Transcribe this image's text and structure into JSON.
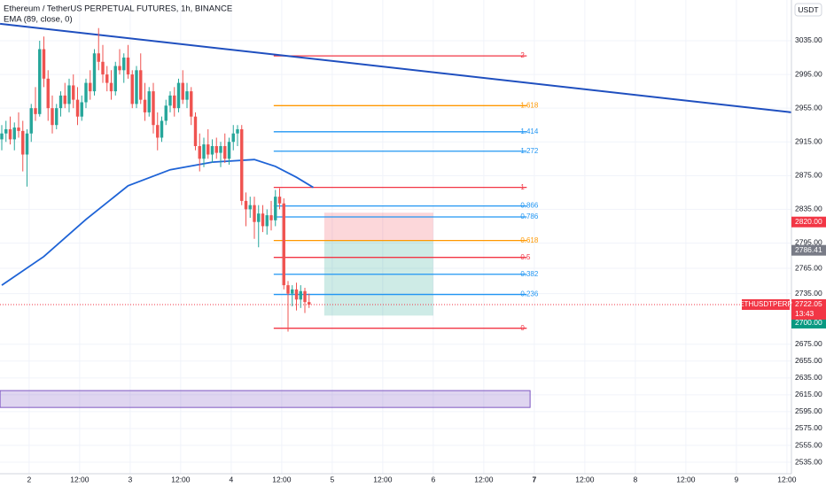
{
  "chart_data": {
    "type": "candlestick",
    "title": "Ethereum / TetherUS PERPETUAL FUTURES, 1h, BINANCE",
    "indicator_label": "EMA (89, close, 0)",
    "currency": "USDT",
    "up_color": "#26a69a",
    "down_color": "#ef5350",
    "ylim": [
      2521.4,
      3083.3
    ],
    "yticks": [
      {
        "value": 3035,
        "label": "3035.00"
      },
      {
        "value": 2995,
        "label": "2995.00"
      },
      {
        "value": 2955,
        "label": "2955.00"
      },
      {
        "value": 2915,
        "label": "2915.00"
      },
      {
        "value": 2875,
        "label": "2875.00"
      },
      {
        "value": 2835,
        "label": "2835.00"
      },
      {
        "value": 2795,
        "label": "2795.00"
      },
      {
        "value": 2765,
        "label": "2765.00"
      },
      {
        "value": 2735,
        "label": "2735.00"
      },
      {
        "value": 2675,
        "label": "2675.00"
      },
      {
        "value": 2655,
        "label": "2655.00"
      },
      {
        "value": 2635,
        "label": "2635.00"
      },
      {
        "value": 2615,
        "label": "2615.00"
      },
      {
        "value": 2595,
        "label": "2595.00"
      },
      {
        "value": 2575,
        "label": "2575.00"
      },
      {
        "value": 2555,
        "label": "2555.00"
      },
      {
        "value": 2535,
        "label": "2535.00"
      }
    ],
    "xticks": [
      {
        "value": 6.5,
        "label": "2"
      },
      {
        "value": 18.5,
        "label": "12:00"
      },
      {
        "value": 30.5,
        "label": "3"
      },
      {
        "value": 42.5,
        "label": "12:00"
      },
      {
        "value": 54.5,
        "label": "4"
      },
      {
        "value": 66.5,
        "label": "12:00"
      },
      {
        "value": 78.5,
        "label": "5"
      },
      {
        "value": 90.5,
        "label": "12:00"
      },
      {
        "value": 102.5,
        "label": "6"
      },
      {
        "value": 114.5,
        "label": "12:00"
      },
      {
        "value": 126.5,
        "label": "7"
      },
      {
        "value": 138.5,
        "label": "12:00"
      },
      {
        "value": 150.5,
        "label": "8"
      },
      {
        "value": 162.5,
        "label": "12:00"
      },
      {
        "value": 174.5,
        "label": "9"
      },
      {
        "value": 186.5,
        "label": "12:00"
      }
    ],
    "candles": [
      [
        2918,
        2935,
        2905,
        2925
      ],
      [
        2925,
        2940,
        2915,
        2930
      ],
      [
        2930,
        2945,
        2912,
        2918
      ],
      [
        2918,
        2938,
        2905,
        2932
      ],
      [
        2932,
        2950,
        2920,
        2928
      ],
      [
        2928,
        2940,
        2880,
        2900
      ],
      [
        2900,
        2930,
        2862,
        2925
      ],
      [
        2925,
        2960,
        2915,
        2955
      ],
      [
        2955,
        2980,
        2940,
        2948
      ],
      [
        2948,
        3035,
        2945,
        3025
      ],
      [
        3025,
        3040,
        2980,
        2990
      ],
      [
        2990,
        3000,
        2940,
        2955
      ],
      [
        2955,
        2970,
        2925,
        2935
      ],
      [
        2935,
        2960,
        2930,
        2955
      ],
      [
        2955,
        2975,
        2945,
        2970
      ],
      [
        2970,
        2985,
        2955,
        2960
      ],
      [
        2960,
        2990,
        2950,
        2982
      ],
      [
        2982,
        2995,
        2955,
        2965
      ],
      [
        2965,
        2980,
        2935,
        2945
      ],
      [
        2945,
        2970,
        2940,
        2962
      ],
      [
        2962,
        2990,
        2955,
        2985
      ],
      [
        2985,
        3000,
        2965,
        2975
      ],
      [
        2975,
        3025,
        2970,
        3020
      ],
      [
        3020,
        3050,
        3000,
        3010
      ],
      [
        3010,
        3030,
        2985,
        2995
      ],
      [
        2995,
        3005,
        2975,
        2985
      ],
      [
        2985,
        3000,
        2965,
        2975
      ],
      [
        2975,
        3010,
        2970,
        3005
      ],
      [
        3005,
        3025,
        2995,
        3000
      ],
      [
        3000,
        3020,
        2985,
        3015
      ],
      [
        3015,
        3030,
        2990,
        2995
      ],
      [
        2995,
        3000,
        2955,
        2960
      ],
      [
        2960,
        3005,
        2955,
        3000
      ],
      [
        3000,
        3020,
        2960,
        2965
      ],
      [
        2965,
        2985,
        2940,
        2950
      ],
      [
        2950,
        2980,
        2945,
        2975
      ],
      [
        2975,
        2985,
        2925,
        2935
      ],
      [
        2935,
        2950,
        2905,
        2920
      ],
      [
        2920,
        2945,
        2915,
        2940
      ],
      [
        2940,
        2965,
        2935,
        2958
      ],
      [
        2958,
        2975,
        2950,
        2970
      ],
      [
        2970,
        2980,
        2945,
        2955
      ],
      [
        2955,
        2990,
        2950,
        2985
      ],
      [
        2985,
        3000,
        2960,
        2965
      ],
      [
        2965,
        2985,
        2955,
        2975
      ],
      [
        2975,
        2980,
        2935,
        2945
      ],
      [
        2945,
        2950,
        2905,
        2910
      ],
      [
        2910,
        2925,
        2880,
        2895
      ],
      [
        2895,
        2920,
        2885,
        2912
      ],
      [
        2912,
        2930,
        2895,
        2900
      ],
      [
        2900,
        2918,
        2890,
        2910
      ],
      [
        2910,
        2920,
        2895,
        2902
      ],
      [
        2902,
        2915,
        2885,
        2910
      ],
      [
        2910,
        2925,
        2890,
        2895
      ],
      [
        2895,
        2920,
        2888,
        2915
      ],
      [
        2915,
        2935,
        2905,
        2925
      ],
      [
        2925,
        2935,
        2910,
        2930
      ],
      [
        2930,
        2935,
        2840,
        2845
      ],
      [
        2845,
        2855,
        2815,
        2835
      ],
      [
        2835,
        2850,
        2825,
        2840
      ],
      [
        2840,
        2850,
        2800,
        2820
      ],
      [
        2820,
        2840,
        2790,
        2830
      ],
      [
        2830,
        2840,
        2808,
        2815
      ],
      [
        2815,
        2835,
        2805,
        2828
      ],
      [
        2828,
        2845,
        2810,
        2822
      ],
      [
        2822,
        2858,
        2815,
        2850
      ],
      [
        2850,
        2860,
        2835,
        2842
      ],
      [
        2842,
        2848,
        2740,
        2745
      ],
      [
        2745,
        2750,
        2690,
        2735
      ],
      [
        2735,
        2745,
        2720,
        2740
      ],
      [
        2740,
        2748,
        2715,
        2728
      ],
      [
        2728,
        2745,
        2718,
        2738
      ],
      [
        2738,
        2742,
        2712,
        2725
      ],
      [
        2725,
        2735,
        2718,
        2722
      ]
    ],
    "ema": {
      "color": "#1e63d6",
      "x": [
        0,
        10,
        20,
        30,
        40,
        50,
        60,
        65,
        70,
        74
      ],
      "values": [
        2745,
        2779,
        2823,
        2863,
        2882,
        2891,
        2894,
        2886,
        2873,
        2861
      ]
    },
    "trendline": {
      "color": "#1f4fbf",
      "x": [
        -0.4,
        187.6
      ],
      "values": [
        3055,
        2950
      ]
    },
    "fib": {
      "x": [
        64.6,
        124.7
      ],
      "levels": [
        {
          "label": "2",
          "value": 3017,
          "color": "#f23645"
        },
        {
          "label": "1.618",
          "value": 2958,
          "color": "#ff9800"
        },
        {
          "label": "1.414",
          "value": 2927,
          "color": "#2196f3"
        },
        {
          "label": "1.272",
          "value": 2904,
          "color": "#2196f3"
        },
        {
          "label": "1",
          "value": 2861,
          "color": "#f23645"
        },
        {
          "label": "0.866",
          "value": 2839,
          "color": "#2196f3"
        },
        {
          "label": "0.786",
          "value": 2826,
          "color": "#2196f3"
        },
        {
          "label": "0.618",
          "value": 2798,
          "color": "#ff9800"
        },
        {
          "label": "0.5",
          "value": 2778,
          "color": "#f23645"
        },
        {
          "label": "0.382",
          "value": 2758,
          "color": "#2196f3"
        },
        {
          "label": "0.236",
          "value": 2734,
          "color": "#2196f3"
        },
        {
          "label": "0",
          "value": 2694,
          "color": "#f23645"
        }
      ]
    },
    "position": {
      "x": [
        76.6,
        102.5
      ],
      "stop": 2831,
      "entry": 2798,
      "target": 2709
    },
    "zone": {
      "x": [
        -0.4,
        125.5
      ],
      "values": [
        2620,
        2600
      ]
    },
    "price_tags": [
      {
        "value": 2820,
        "label": "2820.00",
        "color": "#f23645"
      },
      {
        "value": 2786.41,
        "label": "2786.41",
        "color": "#787b86"
      },
      {
        "value": 2700,
        "label": "2700.00",
        "color": "#089981"
      }
    ],
    "last_price": {
      "name": "ETHUSDTPERP",
      "value": 2722.05,
      "label": "2722.05",
      "countdown": "13:43",
      "color": "#f23645"
    }
  }
}
